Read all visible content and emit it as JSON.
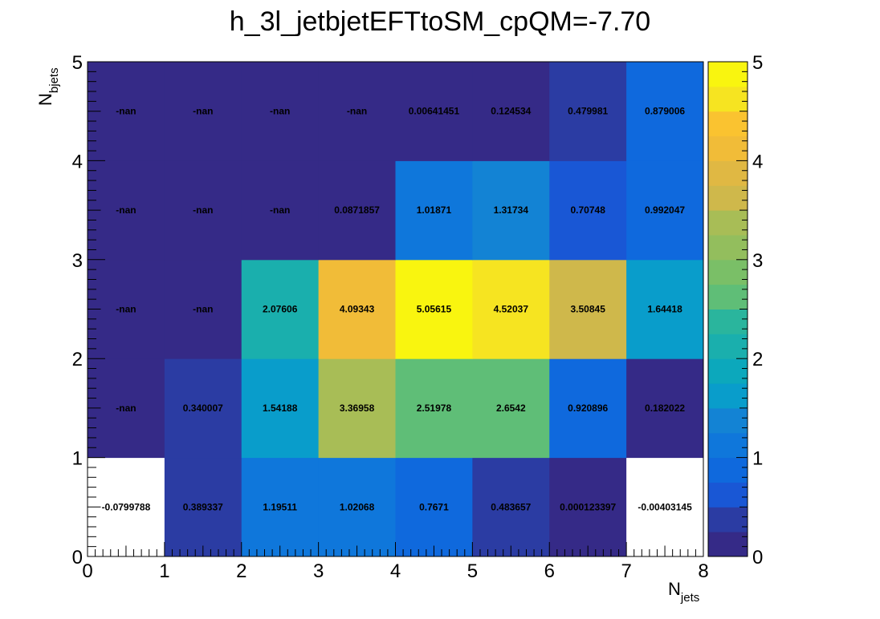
{
  "chart_data": {
    "type": "heatmap",
    "title": "h_3l_jetbjetEFTtoSM_cpQM=-7.70",
    "xlabel": "N",
    "xlabel_sub": "jets",
    "ylabel": "N",
    "ylabel_sub": "bjets",
    "xlim": [
      0,
      8
    ],
    "ylim": [
      0,
      5
    ],
    "zlim": [
      0,
      5
    ],
    "x_ticks": [
      "0",
      "1",
      "2",
      "3",
      "4",
      "5",
      "6",
      "7",
      "8"
    ],
    "y_ticks": [
      "0",
      "1",
      "2",
      "3",
      "4",
      "5"
    ],
    "z_ticks": [
      "0",
      "1",
      "2",
      "3",
      "4",
      "5"
    ],
    "colormap": "parula",
    "grid": false,
    "colorbar": "right",
    "cells": [
      {
        "x": 0,
        "y": 0,
        "label": "-0.0799788",
        "value": -0.0799788
      },
      {
        "x": 1,
        "y": 0,
        "label": "0.389337",
        "value": 0.389337
      },
      {
        "x": 2,
        "y": 0,
        "label": "1.19511",
        "value": 1.19511
      },
      {
        "x": 3,
        "y": 0,
        "label": "1.02068",
        "value": 1.02068
      },
      {
        "x": 4,
        "y": 0,
        "label": "0.7671",
        "value": 0.7671
      },
      {
        "x": 5,
        "y": 0,
        "label": "0.483657",
        "value": 0.483657
      },
      {
        "x": 6,
        "y": 0,
        "label": "0.000123397",
        "value": 0.000123397
      },
      {
        "x": 7,
        "y": 0,
        "label": "-0.00403145",
        "value": -0.00403145
      },
      {
        "x": 0,
        "y": 1,
        "label": "-nan",
        "value": null
      },
      {
        "x": 1,
        "y": 1,
        "label": "0.340007",
        "value": 0.340007
      },
      {
        "x": 2,
        "y": 1,
        "label": "1.54188",
        "value": 1.54188
      },
      {
        "x": 3,
        "y": 1,
        "label": "3.36958",
        "value": 3.36958
      },
      {
        "x": 4,
        "y": 1,
        "label": "2.51978",
        "value": 2.51978
      },
      {
        "x": 5,
        "y": 1,
        "label": "2.6542",
        "value": 2.6542
      },
      {
        "x": 6,
        "y": 1,
        "label": "0.920896",
        "value": 0.920896
      },
      {
        "x": 7,
        "y": 1,
        "label": "0.182022",
        "value": 0.182022
      },
      {
        "x": 0,
        "y": 2,
        "label": "-nan",
        "value": null
      },
      {
        "x": 1,
        "y": 2,
        "label": "-nan",
        "value": null
      },
      {
        "x": 2,
        "y": 2,
        "label": "2.07606",
        "value": 2.07606
      },
      {
        "x": 3,
        "y": 2,
        "label": "4.09343",
        "value": 4.09343
      },
      {
        "x": 4,
        "y": 2,
        "label": "5.05615",
        "value": 5.05615
      },
      {
        "x": 5,
        "y": 2,
        "label": "4.52037",
        "value": 4.52037
      },
      {
        "x": 6,
        "y": 2,
        "label": "3.50845",
        "value": 3.50845
      },
      {
        "x": 7,
        "y": 2,
        "label": "1.64418",
        "value": 1.64418
      },
      {
        "x": 0,
        "y": 3,
        "label": "-nan",
        "value": null
      },
      {
        "x": 1,
        "y": 3,
        "label": "-nan",
        "value": null
      },
      {
        "x": 2,
        "y": 3,
        "label": "-nan",
        "value": null
      },
      {
        "x": 3,
        "y": 3,
        "label": "0.0871857",
        "value": 0.0871857
      },
      {
        "x": 4,
        "y": 3,
        "label": "1.01871",
        "value": 1.01871
      },
      {
        "x": 5,
        "y": 3,
        "label": "1.31734",
        "value": 1.31734
      },
      {
        "x": 6,
        "y": 3,
        "label": "0.70748",
        "value": 0.70748
      },
      {
        "x": 7,
        "y": 3,
        "label": "0.992047",
        "value": 0.992047
      },
      {
        "x": 0,
        "y": 4,
        "label": "-nan",
        "value": null
      },
      {
        "x": 1,
        "y": 4,
        "label": "-nan",
        "value": null
      },
      {
        "x": 2,
        "y": 4,
        "label": "-nan",
        "value": null
      },
      {
        "x": 3,
        "y": 4,
        "label": "-nan",
        "value": null
      },
      {
        "x": 4,
        "y": 4,
        "label": "0.00641451",
        "value": 0.00641451
      },
      {
        "x": 5,
        "y": 4,
        "label": "0.124534",
        "value": 0.124534
      },
      {
        "x": 6,
        "y": 4,
        "label": "0.479981",
        "value": 0.479981
      },
      {
        "x": 7,
        "y": 4,
        "label": "0.879006",
        "value": 0.879006
      }
    ]
  }
}
